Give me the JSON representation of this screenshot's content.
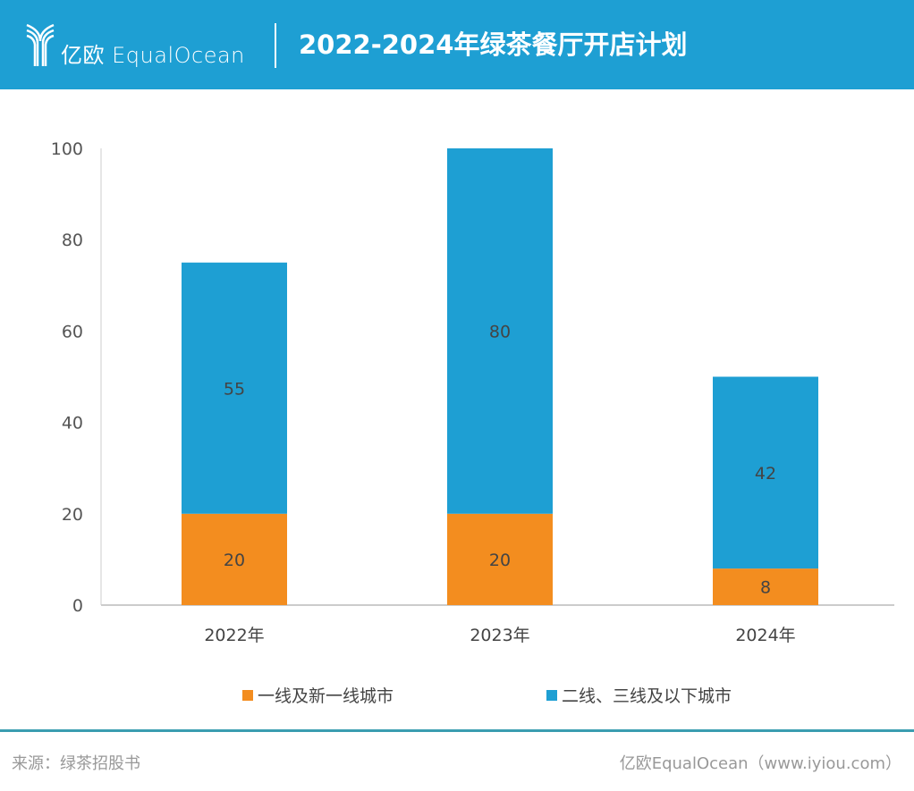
{
  "header": {
    "logo_text": "亿欧 EqualOcean",
    "title": "2022-2024年绿茶餐厅开店计划"
  },
  "chart_data": {
    "type": "bar",
    "stacked": true,
    "title": "2022-2024年绿茶餐厅开店计划",
    "categories": [
      "2022年",
      "2023年",
      "2024年"
    ],
    "series": [
      {
        "name": "一线及新一线城市",
        "values": [
          20,
          20,
          8
        ],
        "color": "#f38d1f"
      },
      {
        "name": "二线、三线及以下城市",
        "values": [
          55,
          80,
          42
        ],
        "color": "#1e9fd3"
      }
    ],
    "yticks": [
      "0",
      "20",
      "40",
      "60",
      "80",
      "100"
    ],
    "ylim": [
      0,
      100
    ],
    "grid": false,
    "legend": "bottom"
  },
  "footer": {
    "source": "来源：绿茶招股书",
    "brand": "亿欧EqualOcean（www.iyiou.com）"
  }
}
